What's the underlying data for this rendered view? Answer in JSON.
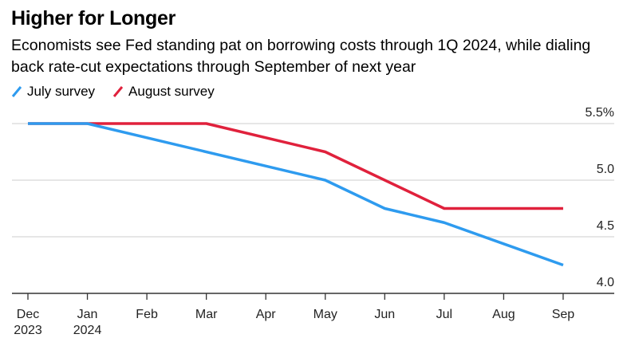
{
  "chart_data": {
    "type": "line",
    "title": "Higher for Longer",
    "subtitle": "Economists see Fed standing pat on borrowing costs through 1Q 2024, while dialing back rate-cut expectations through September of next year",
    "categories": [
      [
        "Dec",
        "2023"
      ],
      [
        "Jan",
        "2024"
      ],
      [
        "Feb",
        ""
      ],
      [
        "Mar",
        ""
      ],
      [
        "Apr",
        ""
      ],
      [
        "May",
        ""
      ],
      [
        "Jun",
        ""
      ],
      [
        "Jul",
        ""
      ],
      [
        "Aug",
        ""
      ],
      [
        "Sep",
        ""
      ]
    ],
    "series": [
      {
        "name": "July survey",
        "color": "#2e9bef",
        "x": [
          0,
          1,
          5,
          6,
          7,
          9
        ],
        "values": [
          5.5,
          5.5,
          5.0,
          4.75,
          4.625,
          4.25
        ]
      },
      {
        "name": "August survey",
        "color": "#e0213c",
        "x": [
          0,
          1,
          3,
          5,
          7,
          9
        ],
        "values": [
          5.5,
          5.5,
          5.5,
          5.25,
          4.75,
          4.75
        ]
      }
    ],
    "yticks": [
      {
        "v": 5.5,
        "label": "5.5%"
      },
      {
        "v": 5.0,
        "label": "5.0"
      },
      {
        "v": 4.5,
        "label": "4.5"
      },
      {
        "v": 4.0,
        "label": "4.0"
      }
    ],
    "ylim": [
      4.0,
      5.5
    ],
    "grid": true,
    "legend": "top-left",
    "xlabel": "",
    "ylabel": ""
  }
}
